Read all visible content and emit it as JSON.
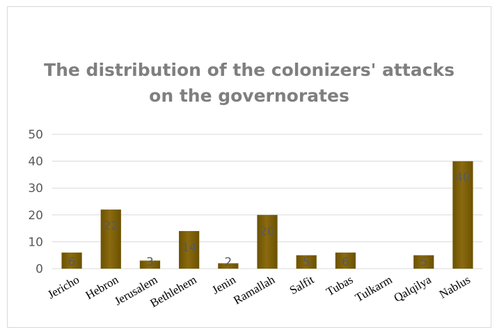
{
  "chart_data": {
    "type": "bar",
    "title_lines": [
      "The distribution of the colonizers' attacks",
      "on the governorates"
    ],
    "categories": [
      "Jericho",
      "Hebron",
      "Jerusalem",
      "Bethlehem",
      "Jenin",
      "Ramallah",
      "Salfit",
      "Tubas",
      "Tulkarm",
      "Qalqilya",
      "Nablus"
    ],
    "values": [
      6,
      22,
      3,
      14,
      2,
      20,
      5,
      6,
      null,
      5,
      40
    ],
    "data_labels": [
      "6",
      "22",
      "3",
      "14",
      "2",
      "20",
      "5",
      "6",
      "",
      "5",
      "40"
    ],
    "ylim": [
      0,
      50
    ],
    "yticks": [
      0,
      10,
      20,
      30,
      40,
      50
    ],
    "grid": true,
    "legend": "none",
    "colors": {
      "bar": "#7f6000",
      "bar_light": "#a68a2e",
      "grid": "#d9d9d9",
      "title": "#7f7f7f"
    }
  }
}
